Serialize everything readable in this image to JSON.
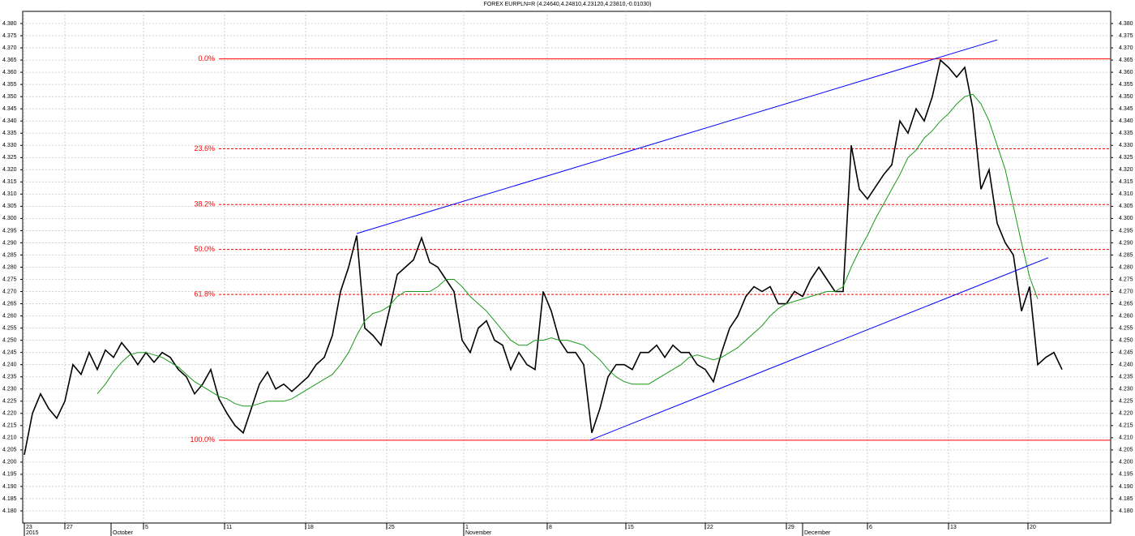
{
  "chart_data": {
    "type": "line",
    "title": "FOREX EURPLN=R (4.24640,4.24810,4.23120,4.23810,-0.01030)",
    "x": [
      0,
      1,
      2,
      3,
      4,
      5,
      6,
      7,
      8,
      9,
      10,
      11,
      12,
      13,
      14,
      15,
      16,
      17,
      18,
      19,
      20,
      21,
      22,
      23,
      24,
      25,
      26,
      27,
      28,
      29,
      30,
      31,
      32,
      33,
      34,
      35,
      36,
      37,
      38,
      39,
      40,
      41,
      42,
      43,
      44,
      45,
      46,
      47,
      48,
      49,
      50,
      51,
      52,
      53,
      54,
      55,
      56,
      57,
      58,
      59,
      60,
      61,
      62,
      63,
      64,
      65,
      66,
      67,
      68,
      69,
      70,
      71,
      72,
      73,
      74,
      75,
      76,
      77,
      78,
      79,
      80,
      81,
      82,
      83,
      84,
      85,
      86,
      87,
      88,
      89,
      90,
      91,
      92,
      93,
      94,
      95,
      96,
      97,
      98,
      99,
      100,
      101,
      102,
      103,
      104,
      105,
      106,
      107,
      108,
      109,
      110,
      111,
      112,
      113,
      114,
      115,
      116,
      117,
      118,
      119,
      120,
      121,
      122,
      123,
      124,
      125,
      126,
      127,
      128
    ],
    "series": [
      {
        "color": "#000000",
        "values": [
          4.203,
          4.22,
          4.228,
          4.222,
          4.218,
          4.225,
          4.24,
          4.236,
          4.245,
          4.238,
          4.246,
          4.243,
          4.249,
          4.245,
          4.24,
          4.245,
          4.241,
          4.245,
          4.243,
          4.238,
          4.235,
          4.228,
          4.232,
          4.238,
          4.226,
          4.22,
          4.215,
          4.212,
          4.222,
          4.232,
          4.237,
          4.23,
          4.232,
          4.229,
          4.232,
          4.235,
          4.24,
          4.243,
          4.252,
          4.27,
          4.28,
          4.293,
          4.255,
          4.252,
          4.248,
          4.262,
          4.277,
          4.28,
          4.283,
          4.292,
          4.282,
          4.28,
          4.275,
          4.27,
          4.25,
          4.245,
          4.255,
          4.258,
          4.25,
          4.248,
          4.238,
          4.245,
          4.24,
          4.238,
          4.27,
          4.262,
          4.25,
          4.245,
          4.245,
          4.24,
          4.212,
          4.222,
          4.235,
          4.24,
          4.24,
          4.238,
          4.245,
          4.245,
          4.248,
          4.243,
          4.248,
          4.245,
          4.245,
          4.24,
          4.238,
          4.233,
          4.245,
          4.255,
          4.26,
          4.268,
          4.272,
          4.27,
          4.272,
          4.265,
          4.265,
          4.27,
          4.268,
          4.275,
          4.28,
          4.275,
          4.27,
          4.27,
          4.33,
          4.312,
          4.308,
          4.313,
          4.318,
          4.322,
          4.34,
          4.335,
          4.345,
          4.34,
          4.35,
          4.365,
          4.362,
          4.358,
          4.362,
          4.345,
          4.312,
          4.32,
          4.298,
          4.29,
          4.285,
          4.262,
          4.272,
          4.24,
          4.243,
          4.245,
          4.238
        ]
      },
      {
        "color": "#1a9a1a",
        "values": [
          null,
          null,
          null,
          null,
          null,
          null,
          null,
          null,
          null,
          4.228,
          4.232,
          4.237,
          4.241,
          4.244,
          4.245,
          4.245,
          4.244,
          4.243,
          4.241,
          4.239,
          4.236,
          4.233,
          4.231,
          4.229,
          4.227,
          4.226,
          4.224,
          4.223,
          4.223,
          4.224,
          4.225,
          4.225,
          4.225,
          4.226,
          4.228,
          4.23,
          4.232,
          4.234,
          4.236,
          4.24,
          4.245,
          4.252,
          4.258,
          4.261,
          4.262,
          4.264,
          4.268,
          4.27,
          4.27,
          4.27,
          4.27,
          4.272,
          4.275,
          4.275,
          4.272,
          4.268,
          4.265,
          4.262,
          4.258,
          4.254,
          4.25,
          4.248,
          4.248,
          4.25,
          4.25,
          4.251,
          4.25,
          4.25,
          4.249,
          4.248,
          4.245,
          4.242,
          4.238,
          4.235,
          4.233,
          4.232,
          4.232,
          4.232,
          4.234,
          4.236,
          4.238,
          4.24,
          4.243,
          4.244,
          4.243,
          4.242,
          4.243,
          4.245,
          4.247,
          4.25,
          4.253,
          4.256,
          4.26,
          4.263,
          4.265,
          4.266,
          4.267,
          4.268,
          4.269,
          4.27,
          4.27,
          4.272,
          4.28,
          4.287,
          4.293,
          4.3,
          4.306,
          4.312,
          4.318,
          4.325,
          4.328,
          4.333,
          4.336,
          4.34,
          4.343,
          4.347,
          4.35,
          4.351,
          4.347,
          4.34,
          4.33,
          4.32,
          4.305,
          4.29,
          4.276,
          4.267,
          null,
          null,
          null
        ]
      }
    ],
    "fib_color": "#ff0000",
    "fib_levels": [
      {
        "label": "0.0%",
        "value": 4.3655,
        "style": "solid"
      },
      {
        "label": "23.6%",
        "value": 4.3286,
        "style": "dashed"
      },
      {
        "label": "38.2%",
        "value": 4.3057,
        "style": "dashed"
      },
      {
        "label": "50.0%",
        "value": 4.2873,
        "style": "dashed"
      },
      {
        "label": "61.8%",
        "value": 4.2688,
        "style": "dashed"
      },
      {
        "label": "100.0%",
        "value": 4.209,
        "style": "solid"
      }
    ],
    "trendlines": [
      {
        "color": "#0000ff",
        "x": [
          41,
          120
        ],
        "y": [
          4.2938,
          4.3733
        ]
      },
      {
        "color": "#0000ff",
        "x": [
          69.8,
          126.3
        ],
        "y": [
          4.209,
          4.2839
        ]
      }
    ],
    "xlim": [
      -0.2,
      134
    ],
    "xticks": [
      {
        "value": 0,
        "label": "23"
      },
      {
        "value": 5,
        "label": "27"
      },
      {
        "value": 14.7,
        "label": "5"
      },
      {
        "value": 24.7,
        "label": "11"
      },
      {
        "value": 34.7,
        "label": "18"
      },
      {
        "value": 44.7,
        "label": "25"
      },
      {
        "value": 54.2,
        "label": "1"
      },
      {
        "value": 64.5,
        "label": "8"
      },
      {
        "value": 74.2,
        "label": "15"
      },
      {
        "value": 84,
        "label": "22"
      },
      {
        "value": 94,
        "label": "29"
      },
      {
        "value": 104,
        "label": "6"
      },
      {
        "value": 114,
        "label": "13"
      },
      {
        "value": 123.8,
        "label": "20"
      }
    ],
    "month_labels": [
      {
        "value": 0,
        "label": "2015"
      },
      {
        "value": 10.7,
        "label": "October"
      },
      {
        "value": 54.2,
        "label": "November"
      },
      {
        "value": 96,
        "label": "December"
      }
    ],
    "ylim": [
      4.175,
      4.385
    ],
    "yticks": [
      {
        "value": 4.18,
        "label": "4.180"
      },
      4.185,
      {
        "value": 4.19,
        "label": "4.190"
      },
      4.195,
      {
        "value": 4.2,
        "label": "4.200"
      },
      4.205,
      {
        "value": 4.21,
        "label": "4.210"
      },
      4.215,
      {
        "value": 4.22,
        "label": "4.220"
      },
      4.225,
      {
        "value": 4.23,
        "label": "4.230"
      },
      4.235,
      {
        "value": 4.24,
        "label": "4.240"
      },
      4.245,
      {
        "value": 4.25,
        "label": "4.250"
      },
      4.255,
      {
        "value": 4.26,
        "label": "4.260"
      },
      4.265,
      {
        "value": 4.27,
        "label": "4.270"
      },
      4.275,
      {
        "value": 4.28,
        "label": "4.280"
      },
      4.285,
      {
        "value": 4.29,
        "label": "4.290"
      },
      4.295,
      {
        "value": 4.3,
        "label": "4.300"
      },
      4.305,
      {
        "value": 4.31,
        "label": "4.310"
      },
      4.315,
      {
        "value": 4.32,
        "label": "4.320"
      },
      4.325,
      {
        "value": 4.33,
        "label": "4.330"
      },
      4.335,
      {
        "value": 4.34,
        "label": "4.340"
      },
      4.345,
      {
        "value": 4.35,
        "label": "4.350"
      },
      4.355,
      {
        "value": 4.36,
        "label": "4.360"
      },
      4.365,
      {
        "value": 4.37,
        "label": "4.370"
      },
      4.375,
      {
        "value": 4.38,
        "label": "4.380"
      }
    ],
    "grid": true
  }
}
